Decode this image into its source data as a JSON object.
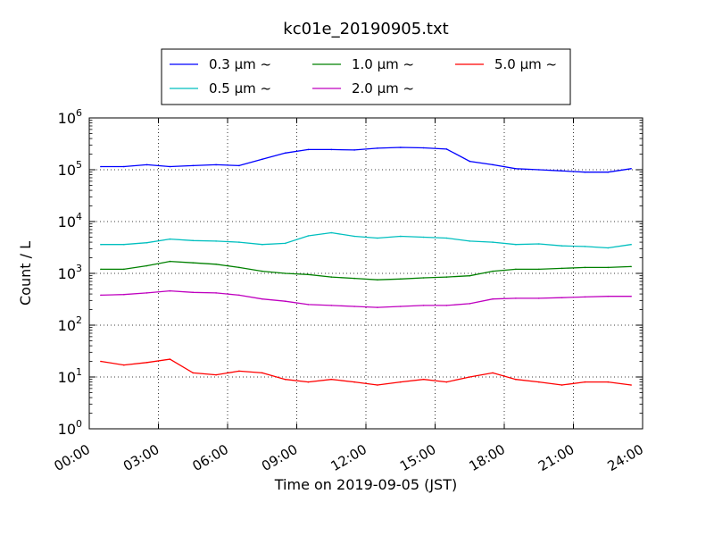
{
  "chart_data": {
    "type": "line",
    "title": "kc01e_20190905.txt",
    "xlabel": "Time on 2019-09-05 (JST)",
    "ylabel": "Count / L",
    "y_scale": "log",
    "ylim": [
      1,
      1000000
    ],
    "xlim": [
      "2019-09-05 00:00",
      "2019-09-06 00:00"
    ],
    "x_ticks": [
      "00:00",
      "03:00",
      "06:00",
      "09:00",
      "12:00",
      "15:00",
      "18:00",
      "21:00",
      "24:00"
    ],
    "y_ticks": [
      {
        "base": "10",
        "exp": "0"
      },
      {
        "base": "10",
        "exp": "1"
      },
      {
        "base": "10",
        "exp": "2"
      },
      {
        "base": "10",
        "exp": "3"
      },
      {
        "base": "10",
        "exp": "4"
      },
      {
        "base": "10",
        "exp": "5"
      },
      {
        "base": "10",
        "exp": "6"
      }
    ],
    "grid": true,
    "legend_position": "top-center",
    "x_hours": [
      0.5,
      1.5,
      2.5,
      3.5,
      4.5,
      5.5,
      6.5,
      7.5,
      8.5,
      9.5,
      10.5,
      11.5,
      12.5,
      13.5,
      14.5,
      15.5,
      16.5,
      17.5,
      18.5,
      19.5,
      20.5,
      21.5,
      22.5,
      23.5
    ],
    "series": [
      {
        "name": "0.3 μm ~",
        "color": "#0000ff",
        "values": [
          115000,
          115000,
          125000,
          115000,
          120000,
          125000,
          120000,
          160000,
          210000,
          245000,
          245000,
          240000,
          260000,
          270000,
          265000,
          250000,
          145000,
          125000,
          105000,
          100000,
          95000,
          90000,
          90000,
          105000
        ]
      },
      {
        "name": "0.5 μm ~",
        "color": "#00bfbf",
        "values": [
          3600,
          3600,
          3900,
          4600,
          4300,
          4200,
          4000,
          3600,
          3800,
          5300,
          6100,
          5200,
          4800,
          5200,
          5000,
          4800,
          4200,
          4000,
          3600,
          3700,
          3400,
          3300,
          3100,
          3600
        ]
      },
      {
        "name": "1.0 μm ~",
        "color": "#008000",
        "values": [
          1200,
          1200,
          1400,
          1700,
          1600,
          1500,
          1300,
          1100,
          1000,
          950,
          850,
          800,
          750,
          780,
          820,
          850,
          900,
          1100,
          1200,
          1200,
          1250,
          1300,
          1300,
          1350
        ]
      },
      {
        "name": "2.0 μm ~",
        "color": "#bf00bf",
        "values": [
          380,
          390,
          420,
          460,
          430,
          420,
          380,
          320,
          290,
          250,
          240,
          230,
          220,
          230,
          240,
          240,
          260,
          320,
          330,
          330,
          340,
          350,
          360,
          360
        ]
      },
      {
        "name": "5.0 μm ~",
        "color": "#ff0000",
        "values": [
          20,
          17,
          19,
          22,
          12,
          11,
          13,
          12,
          9,
          8,
          9,
          8,
          7,
          8,
          9,
          8,
          10,
          12,
          9,
          8,
          7,
          8,
          8,
          7
        ]
      }
    ]
  }
}
